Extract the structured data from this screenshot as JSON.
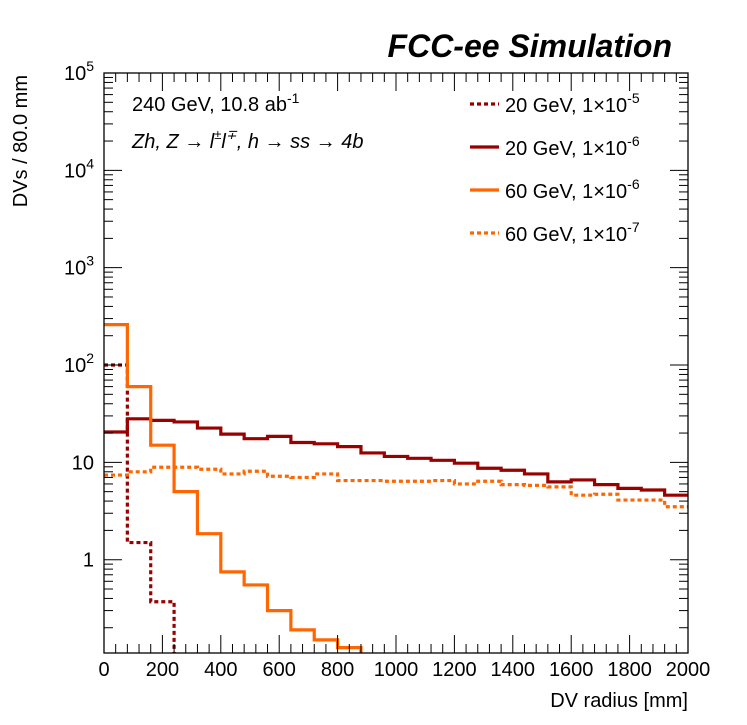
{
  "chart_data": {
    "type": "line",
    "style": "step-histogram",
    "title": "FCC-ee Simulation",
    "xlabel": "DV radius [mm]",
    "ylabel": "DVs / 80.0 mm",
    "xlim": [
      0,
      2000
    ],
    "ylim": [
      0.11,
      100000
    ],
    "yscale": "log",
    "bin_width": 80,
    "x_ticks": [
      0,
      200,
      400,
      600,
      800,
      1000,
      1200,
      1400,
      1600,
      1800,
      2000
    ],
    "x_tick_labels": [
      "0",
      "200",
      "400",
      "600",
      "800",
      "1000",
      "1200",
      "1400",
      "1600",
      "1800",
      "2000"
    ],
    "y_ticks": [
      {
        "value": 1,
        "base": "1",
        "exp": ""
      },
      {
        "value": 10,
        "base": "10",
        "exp": ""
      },
      {
        "value": 100,
        "base": "10",
        "exp": "2"
      },
      {
        "value": 1000,
        "base": "10",
        "exp": "3"
      },
      {
        "value": 10000,
        "base": "10",
        "exp": "4"
      },
      {
        "value": 100000,
        "base": "10",
        "exp": "5"
      }
    ],
    "annotations": {
      "line1_text": "240 GeV, 10.8 ab",
      "line1_sup": "-1",
      "line2_a": "Zh, Z ",
      "line2_arrow1": "→",
      "line2_b": " l",
      "line2_sup1": "±",
      "line2_c": "l",
      "line2_sup2": "∓",
      "line2_d": ", h ",
      "line2_arrow2": "→",
      "line2_e": " ss ",
      "line2_arrow3": "→",
      "line2_f": " 4b"
    },
    "series": [
      {
        "name": "20 GeV, 1×10-5",
        "label_main": "20 GeV, 1×10",
        "label_exp": "-5",
        "color": "#990000",
        "dashed": true,
        "values": [
          100,
          1.5,
          0.37,
          0.105,
          0.105,
          0.105,
          0.105,
          0.105,
          0.105,
          0.105,
          0.105,
          0.105,
          0.105,
          0.105,
          0.105,
          0.105,
          0.105,
          0.105,
          0.105,
          0.105,
          0.105,
          0.105,
          0.105,
          0.105,
          0.105
        ]
      },
      {
        "name": "20 GeV, 1×10-6",
        "label_main": "20 GeV, 1×10",
        "label_exp": "-6",
        "color": "#990000",
        "dashed": false,
        "values": [
          20.5,
          28,
          27,
          26,
          22.5,
          19.5,
          17.5,
          18.5,
          16,
          15.5,
          14.5,
          12.5,
          11.5,
          11,
          10.5,
          9.8,
          8.7,
          8.3,
          7.6,
          6.3,
          6.6,
          5.9,
          5.4,
          5.2,
          4.6
        ]
      },
      {
        "name": "60 GeV, 1×10-6",
        "label_main": "60 GeV, 1×10",
        "label_exp": "-6",
        "color": "#ff6600",
        "dashed": false,
        "values": [
          260,
          60,
          15,
          5,
          1.85,
          0.75,
          0.55,
          0.3,
          0.19,
          0.15,
          0.125,
          0.105,
          0.105,
          0.105,
          0.105,
          0.105,
          0.105,
          0.105,
          0.105,
          0.105,
          0.105,
          0.105,
          0.105,
          0.105,
          0.105
        ]
      },
      {
        "name": "60 GeV, 1×10-7",
        "label_main": "60 GeV, 1×10",
        "label_exp": "-7",
        "color": "#ff6600",
        "dashed": true,
        "values": [
          7.4,
          8.0,
          8.9,
          8.9,
          8.5,
          7.6,
          8.1,
          7.2,
          7.0,
          7.6,
          6.5,
          6.5,
          6.4,
          6.4,
          6.5,
          6.0,
          6.4,
          5.9,
          5.8,
          5.6,
          4.6,
          4.7,
          4.1,
          4.1,
          3.5
        ]
      }
    ],
    "legend_position": "top-right"
  }
}
